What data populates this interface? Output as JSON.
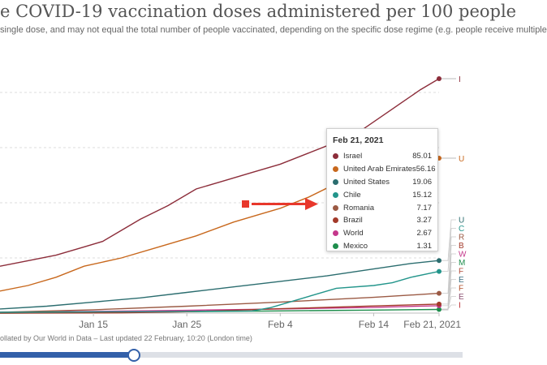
{
  "header": {
    "title": "e COVID-19 vaccination doses administered per 100 people",
    "subtitle": "single dose, and may not equal the total number of people vaccinated, depending on the specific dose regime (e.g. people receive multiple"
  },
  "footer": {
    "source": "ollated by Our World in Data – Last updated 22 February, 10:20 (London time)"
  },
  "tooltip": {
    "date": "Feb 21, 2021",
    "rows": [
      {
        "name": "Israel",
        "value": "85.01",
        "color": "#8c2d3a"
      },
      {
        "name": "United Arab Emirates",
        "value": "56.16",
        "color": "#c8681d"
      },
      {
        "name": "United States",
        "value": "19.06",
        "color": "#2b6d6f"
      },
      {
        "name": "Chile",
        "value": "15.12",
        "color": "#23958b"
      },
      {
        "name": "Romania",
        "value": "7.17",
        "color": "#9b5a44"
      },
      {
        "name": "Brazil",
        "value": "3.27",
        "color": "#a33a2a"
      },
      {
        "name": "World",
        "value": "2.67",
        "color": "#c4388b"
      },
      {
        "name": "Mexico",
        "value": "1.31",
        "color": "#1e8d4c"
      }
    ]
  },
  "chart_data": {
    "type": "line",
    "title": "e COVID-19 vaccination doses administered per 100 people",
    "xlabel": "",
    "ylabel": "",
    "x_ticks": [
      "Jan 15",
      "Jan 25",
      "Feb 4",
      "Feb 14",
      "Feb 21, 2021"
    ],
    "x_range": [
      "2021-01-05",
      "2021-02-21"
    ],
    "ylim": [
      0,
      90
    ],
    "grid": "horizontal dashed",
    "series": [
      {
        "name": "Israel",
        "color": "#8c2d3a",
        "end_label": "I",
        "points": [
          [
            "2021-01-05",
            17
          ],
          [
            "2021-01-08",
            19
          ],
          [
            "2021-01-11",
            21
          ],
          [
            "2021-01-14",
            24
          ],
          [
            "2021-01-16",
            26
          ],
          [
            "2021-01-18",
            30
          ],
          [
            "2021-01-20",
            34
          ],
          [
            "2021-01-23",
            39
          ],
          [
            "2021-01-26",
            45
          ],
          [
            "2021-01-29",
            48
          ],
          [
            "2021-02-01",
            51
          ],
          [
            "2021-02-04",
            54
          ],
          [
            "2021-02-07",
            58
          ],
          [
            "2021-02-10",
            62
          ],
          [
            "2021-02-13",
            67
          ],
          [
            "2021-02-16",
            74
          ],
          [
            "2021-02-19",
            81
          ],
          [
            "2021-02-21",
            85
          ]
        ]
      },
      {
        "name": "United Arab Emirates",
        "color": "#c8681d",
        "end_label": "U",
        "points": [
          [
            "2021-01-05",
            8
          ],
          [
            "2021-01-08",
            10
          ],
          [
            "2021-01-11",
            13
          ],
          [
            "2021-01-14",
            17
          ],
          [
            "2021-01-18",
            20
          ],
          [
            "2021-01-22",
            24
          ],
          [
            "2021-01-26",
            28
          ],
          [
            "2021-01-30",
            33
          ],
          [
            "2021-02-02",
            36
          ],
          [
            "2021-02-04",
            38
          ],
          [
            "2021-02-07",
            42
          ],
          [
            "2021-02-10",
            47
          ],
          [
            "2021-02-14",
            51
          ],
          [
            "2021-02-18",
            54
          ],
          [
            "2021-02-21",
            56.16
          ]
        ]
      },
      {
        "name": "United States",
        "color": "#2b6d6f",
        "end_label": "U",
        "points": [
          [
            "2021-01-05",
            1.5
          ],
          [
            "2021-01-10",
            2.5
          ],
          [
            "2021-01-15",
            4
          ],
          [
            "2021-01-20",
            5.5
          ],
          [
            "2021-01-25",
            7.5
          ],
          [
            "2021-01-30",
            9.5
          ],
          [
            "2021-02-04",
            11.5
          ],
          [
            "2021-02-09",
            13.5
          ],
          [
            "2021-02-14",
            16
          ],
          [
            "2021-02-18",
            18
          ],
          [
            "2021-02-21",
            19.06
          ]
        ]
      },
      {
        "name": "Chile",
        "color": "#23958b",
        "end_label": "C",
        "points": [
          [
            "2021-01-05",
            0.3
          ],
          [
            "2021-01-20",
            0.5
          ],
          [
            "2021-02-01",
            0.8
          ],
          [
            "2021-02-03",
            2
          ],
          [
            "2021-02-05",
            4
          ],
          [
            "2021-02-08",
            7
          ],
          [
            "2021-02-10",
            9
          ],
          [
            "2021-02-14",
            10
          ],
          [
            "2021-02-16",
            11
          ],
          [
            "2021-02-18",
            13
          ],
          [
            "2021-02-21",
            15.12
          ]
        ]
      },
      {
        "name": "Romania",
        "color": "#9b5a44",
        "end_label": "R",
        "points": [
          [
            "2021-01-05",
            0.3
          ],
          [
            "2021-01-15",
            1.2
          ],
          [
            "2021-01-25",
            2.5
          ],
          [
            "2021-02-04",
            4
          ],
          [
            "2021-02-14",
            5.7
          ],
          [
            "2021-02-21",
            7.17
          ]
        ]
      },
      {
        "name": "Brazil",
        "color": "#a33a2a",
        "end_label": "B",
        "points": [
          [
            "2021-01-05",
            0
          ],
          [
            "2021-01-18",
            0.1
          ],
          [
            "2021-01-25",
            0.5
          ],
          [
            "2021-02-04",
            1.6
          ],
          [
            "2021-02-14",
            2.6
          ],
          [
            "2021-02-21",
            3.27
          ]
        ]
      },
      {
        "name": "World",
        "color": "#c4388b",
        "end_label": "W",
        "points": [
          [
            "2021-01-05",
            0.3
          ],
          [
            "2021-01-15",
            0.6
          ],
          [
            "2021-01-25",
            1.0
          ],
          [
            "2021-02-04",
            1.5
          ],
          [
            "2021-02-14",
            2.1
          ],
          [
            "2021-02-21",
            2.67
          ]
        ]
      },
      {
        "name": "Mexico",
        "color": "#1e8d4c",
        "end_label": "M",
        "points": [
          [
            "2021-01-05",
            0
          ],
          [
            "2021-01-15",
            0.2
          ],
          [
            "2021-01-25",
            0.5
          ],
          [
            "2021-02-04",
            0.8
          ],
          [
            "2021-02-14",
            1.1
          ],
          [
            "2021-02-21",
            1.31
          ]
        ]
      }
    ],
    "extra_end_labels": [
      {
        "label": "F",
        "color": "#b04a37"
      },
      {
        "label": "E",
        "color": "#3a6d80"
      },
      {
        "label": "F",
        "color": "#b2502a"
      },
      {
        "label": "E",
        "color": "#8a4d70"
      },
      {
        "label": "I",
        "color": "#b9292e"
      }
    ],
    "annotation": "red arrow pointing toward tooltip"
  }
}
